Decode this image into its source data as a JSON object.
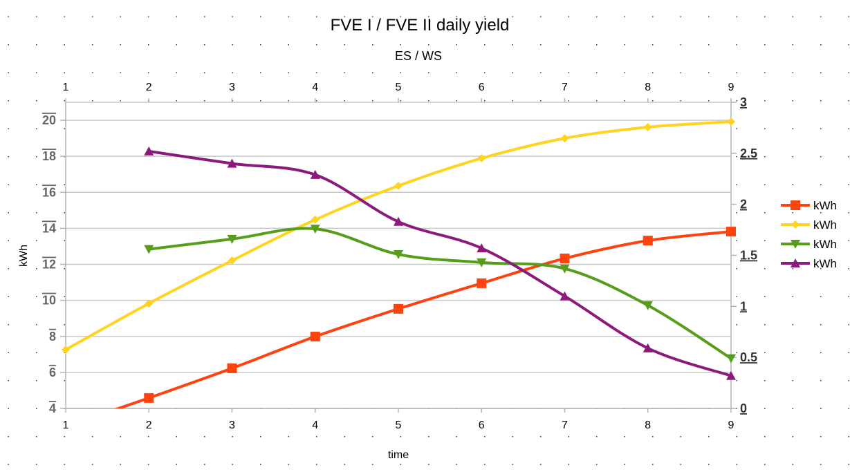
{
  "chart_data": {
    "type": "line",
    "title": "FVE I / FVE II daily yield",
    "subtitle": "ES / WS",
    "xlabel": "time",
    "ylabel": "kWh",
    "x": [
      1,
      2,
      3,
      4,
      5,
      6,
      7,
      8,
      9
    ],
    "x_ticks": [
      "1",
      "2",
      "3",
      "4",
      "5",
      "6",
      "7",
      "8",
      "9"
    ],
    "ylim": [
      4,
      21
    ],
    "y_ticks": [
      "4",
      "6",
      "8",
      "10",
      "12",
      "14",
      "16",
      "18",
      "20"
    ],
    "y2lim": [
      0,
      3
    ],
    "y2_ticks": [
      "0",
      "0.5",
      "1",
      "1.5",
      "2",
      "2.5",
      "3"
    ],
    "grid": true,
    "legend_placement": "right",
    "series": [
      {
        "name": "kWh",
        "axis": "left",
        "color": "#ff420e",
        "marker": "square",
        "values": [
          3.0,
          4.58,
          6.23,
          7.99,
          9.53,
          10.95,
          12.33,
          13.32,
          13.82
        ]
      },
      {
        "name": "kWh",
        "axis": "left",
        "color": "#ffd320",
        "marker": "diamond",
        "values": [
          7.26,
          9.83,
          12.21,
          14.48,
          16.36,
          17.89,
          19.0,
          19.62,
          19.92
        ]
      },
      {
        "name": "kWh",
        "axis": "right",
        "color": "#579d1c",
        "marker": "triangle-down",
        "values": [
          null,
          1.56,
          1.66,
          1.76,
          1.51,
          1.43,
          1.37,
          1.01,
          0.49
        ]
      },
      {
        "name": "kWh",
        "axis": "right",
        "color": "#8b1a7c",
        "marker": "triangle-up",
        "values": [
          null,
          2.52,
          2.4,
          2.29,
          1.83,
          1.57,
          1.1,
          0.59,
          0.32
        ]
      }
    ]
  }
}
